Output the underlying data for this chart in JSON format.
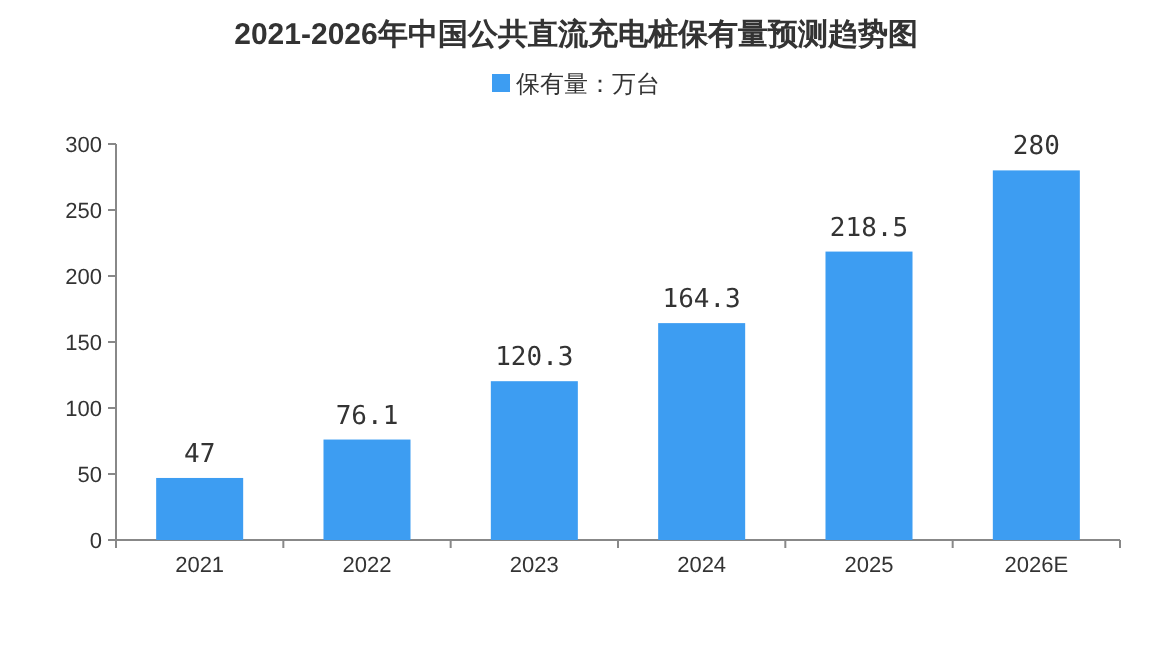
{
  "chart_data": {
    "type": "bar",
    "title": "2021-2026年中国公共直流充电桩保有量预测趋势图",
    "categories": [
      "2021",
      "2022",
      "2023",
      "2024",
      "2025",
      "2026E"
    ],
    "series": [
      {
        "name": "保有量：万台",
        "color": "#3d9df2",
        "values": [
          47,
          76.1,
          120.3,
          164.3,
          218.5,
          280
        ]
      }
    ],
    "ylim": [
      0,
      300
    ],
    "yticks": [
      0,
      50,
      100,
      150,
      200,
      250,
      300
    ],
    "data_labels": true,
    "legend": "top",
    "grid": false
  }
}
